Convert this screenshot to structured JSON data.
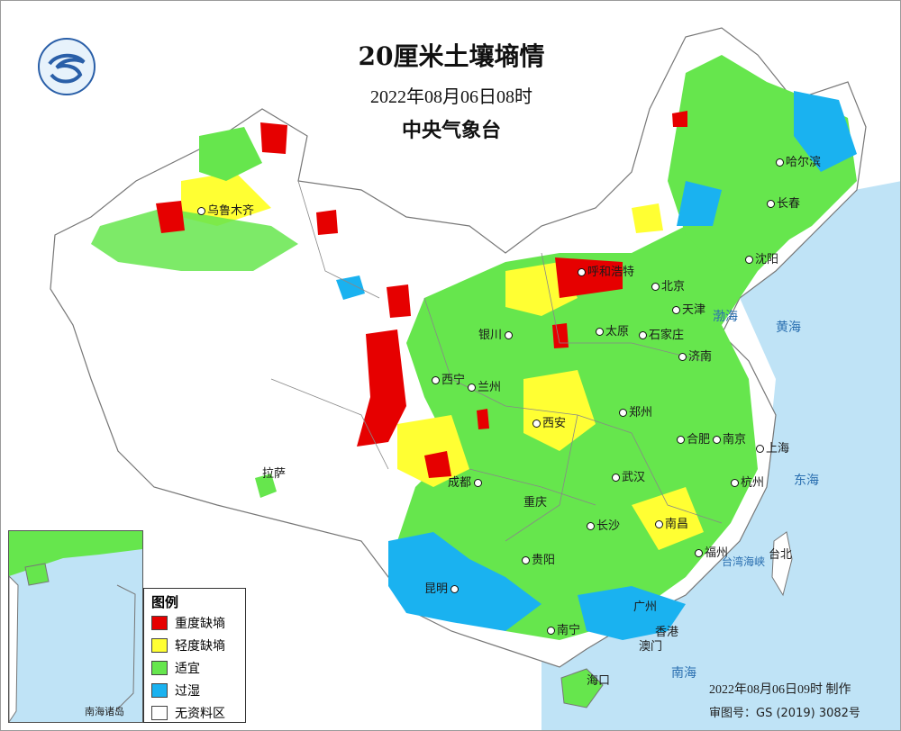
{
  "header": {
    "title": "20厘米土壤墒情",
    "datetime": "2022年08月06日08时",
    "issuer": "中央气象台"
  },
  "legend": {
    "title": "图例",
    "items": [
      {
        "label": "重度缺墒",
        "color": "#e60000"
      },
      {
        "label": "轻度缺墒",
        "color": "#ffff33"
      },
      {
        "label": "适宜",
        "color": "#66e64d"
      },
      {
        "label": "过湿",
        "color": "#1ab2f0"
      },
      {
        "label": "无资料区",
        "color": "#ffffff"
      }
    ]
  },
  "cities": {
    "urumqi": "乌鲁木齐",
    "harbin": "哈尔滨",
    "changchun": "长春",
    "shenyang": "沈阳",
    "hohhot": "呼和浩特",
    "beijing": "北京",
    "tianjin": "天津",
    "yinchuan": "银川",
    "taiyuan": "太原",
    "shijiazhuang": "石家庄",
    "jinan": "济南",
    "xining": "西宁",
    "lanzhou": "兰州",
    "xian": "西安",
    "zhengzhou": "郑州",
    "hefei": "合肥",
    "nanjing": "南京",
    "shanghai": "上海",
    "lhasa": "拉萨",
    "chengdu": "成都",
    "chongqing": "重庆",
    "wuhan": "武汉",
    "hangzhou": "杭州",
    "changsha": "长沙",
    "nanchang": "南昌",
    "kunming": "昆明",
    "guiyang": "贵阳",
    "fuzhou": "福州",
    "taipei": "台北",
    "guangzhou": "广州",
    "nanning": "南宁",
    "hongkong": "香港",
    "macau": "澳门",
    "haikou": "海口"
  },
  "seas": {
    "bohai": "渤海",
    "yellow_sea": "黄海",
    "east_sea": "东海",
    "south_sea": "南海",
    "taiwan_strait": "台湾海峡"
  },
  "inset": {
    "label": "南海诸岛"
  },
  "footer": {
    "made": "2022年08月06日09时 制作",
    "review": "审图号：GS (2019) 3082号"
  },
  "colors": {
    "sea": "#bfe3f6",
    "severe": "#e60000",
    "light": "#ffff33",
    "suitable": "#66e64d",
    "wet": "#1ab2f0"
  }
}
